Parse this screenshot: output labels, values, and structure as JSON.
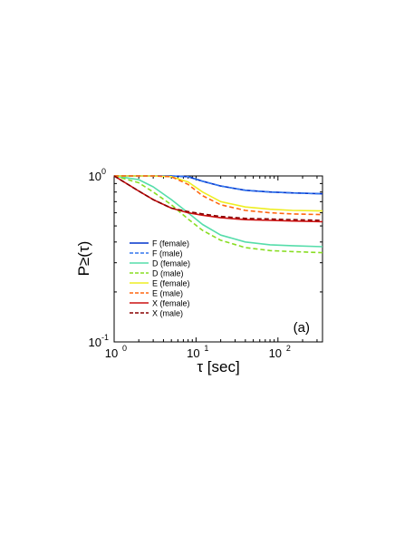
{
  "chart_data": {
    "type": "line",
    "panel_label": "(a)",
    "xlabel": "τ [sec]",
    "ylabel": "P≥(τ)",
    "x_scale": "log",
    "y_scale": "log",
    "xlim": [
      1,
      350
    ],
    "ylim": [
      0.1,
      1
    ],
    "x_ticks": [
      {
        "value": 1,
        "base": "10",
        "exp": "0"
      },
      {
        "value": 10,
        "base": "10",
        "exp": "1"
      },
      {
        "value": 100,
        "base": "10",
        "exp": "2"
      }
    ],
    "y_ticks": [
      {
        "value": 0.1,
        "base": "10",
        "exp": "-1"
      },
      {
        "value": 1,
        "base": "10",
        "exp": "0"
      }
    ],
    "legend_position": "lower-left",
    "x": [
      1,
      2,
      3,
      5,
      8,
      12,
      20,
      40,
      80,
      150,
      350
    ],
    "series": [
      {
        "name": "F (female)",
        "color": "#0033cc",
        "dash": "solid",
        "values": [
          1.0,
          1.0,
          1.0,
          1.0,
          0.99,
          0.93,
          0.87,
          0.82,
          0.8,
          0.79,
          0.78
        ]
      },
      {
        "name": "F (male)",
        "color": "#3377ee",
        "dash": "dashed",
        "values": [
          1.0,
          1.0,
          1.0,
          1.0,
          0.99,
          0.93,
          0.87,
          0.82,
          0.8,
          0.79,
          0.78
        ]
      },
      {
        "name": "D (female)",
        "color": "#55ddaa",
        "dash": "solid",
        "values": [
          1.0,
          0.95,
          0.86,
          0.72,
          0.6,
          0.51,
          0.44,
          0.4,
          0.385,
          0.38,
          0.375
        ]
      },
      {
        "name": "D (male)",
        "color": "#88dd22",
        "dash": "dashed",
        "values": [
          1.0,
          0.91,
          0.8,
          0.67,
          0.55,
          0.47,
          0.41,
          0.37,
          0.355,
          0.35,
          0.345
        ]
      },
      {
        "name": "E (female)",
        "color": "#eeee22",
        "dash": "solid",
        "values": [
          1.0,
          1.0,
          1.0,
          0.99,
          0.92,
          0.8,
          0.7,
          0.65,
          0.63,
          0.62,
          0.615
        ]
      },
      {
        "name": "E (male)",
        "color": "#ff6611",
        "dash": "dashed",
        "values": [
          1.0,
          1.0,
          1.0,
          0.99,
          0.89,
          0.76,
          0.67,
          0.62,
          0.6,
          0.59,
          0.585
        ]
      },
      {
        "name": "X (female)",
        "color": "#cc1111",
        "dash": "solid",
        "values": [
          1.0,
          0.81,
          0.72,
          0.64,
          0.6,
          0.58,
          0.56,
          0.545,
          0.54,
          0.535,
          0.53
        ]
      },
      {
        "name": "X (male)",
        "color": "#880000",
        "dash": "dashed",
        "values": [
          1.0,
          0.81,
          0.72,
          0.64,
          0.61,
          0.59,
          0.57,
          0.555,
          0.55,
          0.545,
          0.54
        ]
      }
    ]
  }
}
